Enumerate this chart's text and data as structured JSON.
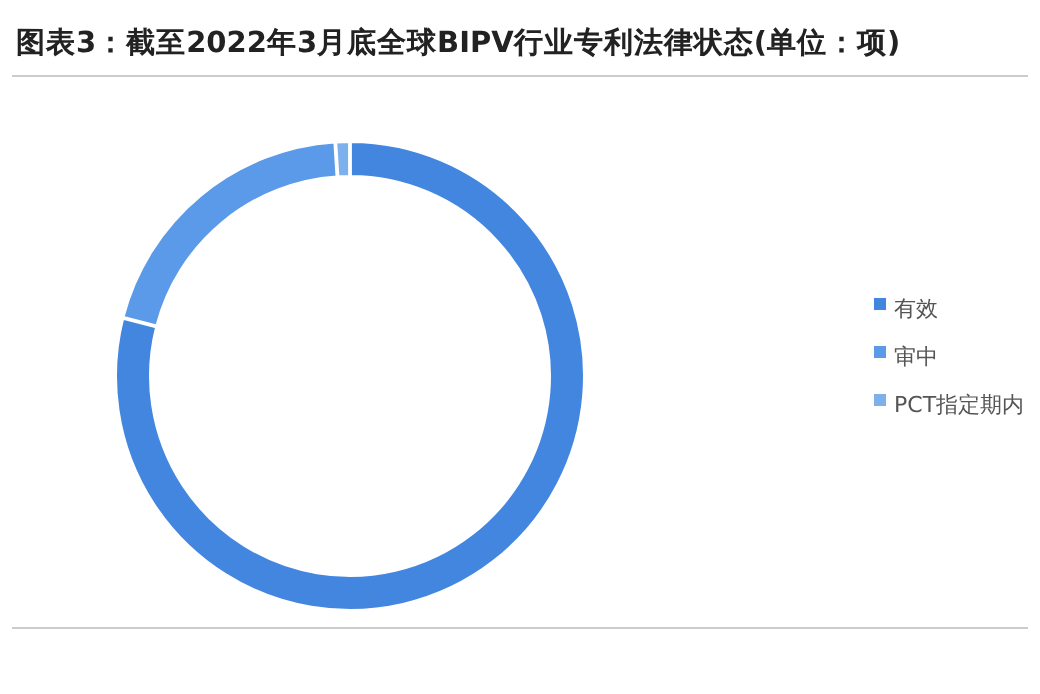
{
  "chart_data": {
    "type": "donut",
    "title": "图表3：截至2022年3月底全球BIPV行业专利法律状态(单位：项)",
    "categories": [
      "有效",
      "审中",
      "PCT指定期内"
    ],
    "values": [
      79,
      20,
      1
    ],
    "colors": [
      "#4286e0",
      "#5a9ae8",
      "#7db1ee"
    ],
    "legend": "right"
  }
}
